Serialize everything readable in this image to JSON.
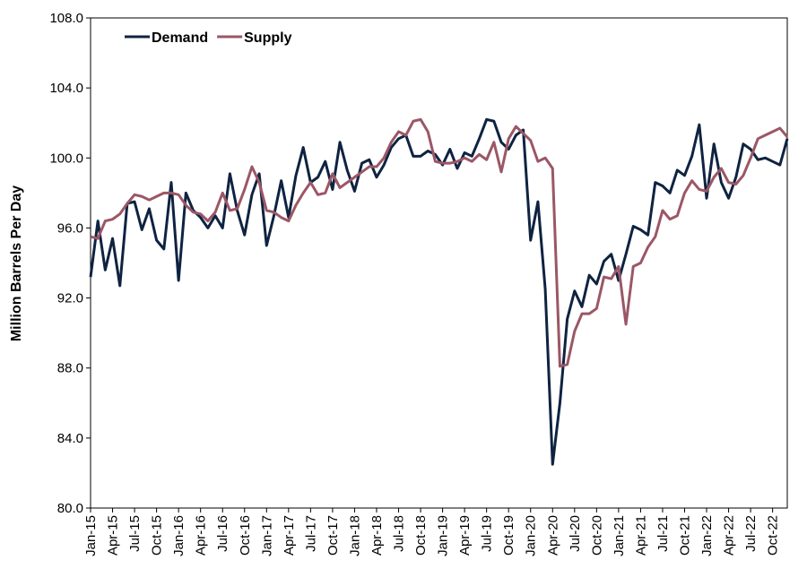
{
  "chart_data": {
    "type": "line",
    "y_label": "Million Barrels Per Day",
    "categories": [
      "Jan-15",
      null,
      null,
      "Apr-15",
      null,
      null,
      "Jul-15",
      null,
      null,
      "Oct-15",
      null,
      null,
      "Jan-16",
      null,
      null,
      "Apr-16",
      null,
      null,
      "Jul-16",
      null,
      null,
      "Oct-16",
      null,
      null,
      "Jan-17",
      null,
      null,
      "Apr-17",
      null,
      null,
      "Jul-17",
      null,
      null,
      "Oct-17",
      null,
      null,
      "Jan-18",
      null,
      null,
      "Apr-18",
      null,
      null,
      "Jul-18",
      null,
      null,
      "Oct-18",
      null,
      null,
      "Jan-19",
      null,
      null,
      "Apr-19",
      null,
      null,
      "Jul-19",
      null,
      null,
      "Oct-19",
      null,
      null,
      "Jan-20",
      null,
      null,
      "Apr-20",
      null,
      null,
      "Jul-20",
      null,
      null,
      "Oct-20",
      null,
      null,
      "Jan-21",
      null,
      null,
      "Apr-21",
      null,
      null,
      "Jul-21",
      null,
      null,
      "Oct-21",
      null,
      null,
      "Jan-22",
      null,
      null,
      "Apr-22",
      null,
      null,
      "Jul-22",
      null,
      null,
      "Oct-22",
      null,
      null
    ],
    "series": [
      {
        "name": "Demand",
        "color": "#0f2341",
        "values": [
          93.2,
          96.4,
          93.6,
          95.4,
          92.7,
          97.4,
          97.5,
          95.9,
          97.1,
          95.3,
          94.8,
          98.6,
          93.0,
          98.0,
          97.0,
          96.6,
          96.0,
          96.7,
          96.0,
          99.1,
          97.0,
          95.6,
          97.9,
          99.1,
          95.0,
          96.7,
          98.7,
          96.6,
          99.0,
          100.6,
          98.6,
          98.9,
          99.8,
          98.2,
          100.9,
          99.3,
          98.1,
          99.7,
          99.9,
          98.9,
          99.6,
          100.6,
          101.1,
          101.3,
          100.1,
          100.1,
          100.4,
          100.2,
          99.6,
          100.5,
          99.4,
          100.3,
          100.1,
          101.1,
          102.2,
          102.1,
          100.9,
          100.5,
          101.3,
          101.6,
          95.3,
          97.5,
          92.5,
          82.5,
          86.0,
          90.8,
          92.4,
          91.5,
          93.3,
          92.8,
          94.1,
          94.5,
          93.0,
          94.5,
          96.1,
          95.9,
          95.6,
          98.6,
          98.4,
          98.0,
          99.3,
          99.0,
          100.1,
          101.9,
          97.7,
          100.8,
          98.6,
          97.7,
          98.9,
          100.8,
          100.5,
          99.9,
          100.0,
          99.8,
          99.6,
          101.1
        ]
      },
      {
        "name": "Supply",
        "color": "#9b5766",
        "values": [
          95.5,
          95.4,
          96.4,
          96.5,
          96.8,
          97.4,
          97.9,
          97.8,
          97.6,
          97.8,
          98.0,
          98.0,
          97.9,
          97.3,
          96.9,
          96.8,
          96.4,
          96.9,
          98.0,
          97.0,
          97.1,
          98.2,
          99.5,
          98.6,
          97.0,
          96.9,
          96.6,
          96.4,
          97.3,
          98.0,
          98.6,
          97.9,
          98.0,
          99.1,
          98.3,
          98.6,
          98.9,
          99.2,
          99.5,
          99.5,
          100.0,
          100.9,
          101.5,
          101.3,
          102.1,
          102.2,
          101.5,
          99.8,
          99.7,
          99.7,
          99.8,
          100.0,
          99.8,
          100.2,
          99.9,
          100.9,
          99.2,
          101.1,
          101.8,
          101.4,
          101.0,
          99.8,
          100.0,
          99.4,
          88.1,
          88.2,
          90.1,
          91.1,
          91.1,
          91.4,
          93.2,
          93.1,
          93.8,
          90.5,
          93.8,
          94.0,
          94.9,
          95.5,
          97.0,
          96.5,
          96.7,
          98.0,
          98.7,
          98.2,
          98.1,
          98.9,
          99.4,
          98.6,
          98.5,
          99.0,
          100.0,
          101.1,
          101.3,
          101.5,
          101.7,
          101.2
        ]
      }
    ],
    "ylim": [
      80,
      108
    ],
    "yticks": [
      {
        "value": 80,
        "label": "80.0"
      },
      {
        "value": 84,
        "label": "84.0"
      },
      {
        "value": 88,
        "label": "88.0"
      },
      {
        "value": 92,
        "label": "92.0"
      },
      {
        "value": 96,
        "label": "96.0"
      },
      {
        "value": 100,
        "label": "100.0"
      },
      {
        "value": 104,
        "label": "104.0"
      },
      {
        "value": 108,
        "label": "108.0"
      }
    ],
    "grid": false,
    "legend": "top-left"
  }
}
